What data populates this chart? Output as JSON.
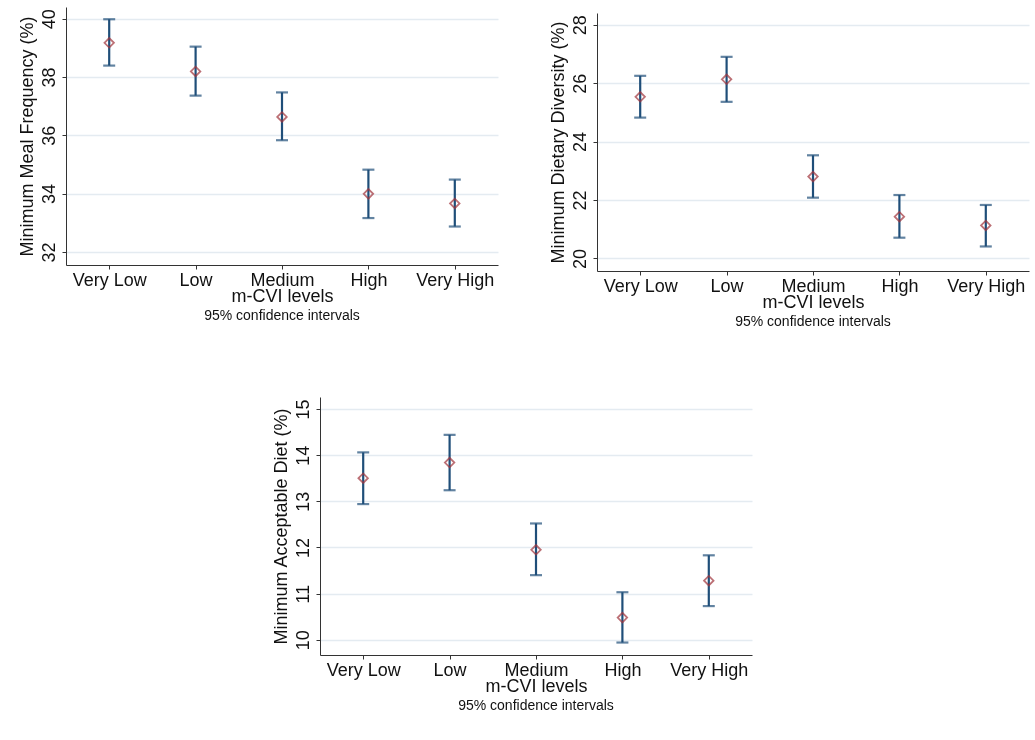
{
  "chart_data": [
    {
      "type": "scatter",
      "categories": [
        "Very Low",
        "Low",
        "Medium",
        "High",
        "Very High"
      ],
      "xlabel": "m-CVI levels",
      "ylabel": "Minimum Meal Frequency (%)",
      "annotations": [
        "95% confidence intervals"
      ],
      "ylim": [
        31.55,
        40.4
      ],
      "yticks": [
        32,
        34,
        36,
        38,
        40
      ],
      "grid": "y",
      "marker": "diamond",
      "series": [
        {
          "color": "#a0343c",
          "values": [
            39.17,
            38.19,
            36.63,
            33.99,
            33.66
          ],
          "errors": [
            [
              38.39,
              39.98
            ],
            [
              37.36,
              39.04
            ],
            [
              35.83,
              37.47
            ],
            [
              33.16,
              34.82
            ],
            [
              32.87,
              34.48
            ]
          ]
        }
      ]
    },
    {
      "type": "scatter",
      "categories": [
        "Very Low",
        "Low",
        "Medium",
        "High",
        "Very High"
      ],
      "xlabel": "m-CVI levels",
      "ylabel": "Minimum Dietary Diversity (%)",
      "annotations": [
        "95% confidence intervals"
      ],
      "ylim": [
        19.57,
        28.4
      ],
      "yticks": [
        20,
        22,
        24,
        26,
        28
      ],
      "grid": "y",
      "marker": "diamond",
      "series": [
        {
          "color": "#a0343c",
          "values": [
            25.53,
            26.13,
            22.8,
            21.43,
            21.13
          ],
          "errors": [
            [
              24.82,
              26.25
            ],
            [
              25.36,
              26.9
            ],
            [
              22.08,
              23.53
            ],
            [
              20.71,
              22.17
            ],
            [
              20.41,
              21.83
            ]
          ]
        }
      ]
    },
    {
      "type": "scatter",
      "categories": [
        "Very Low",
        "Low",
        "Medium",
        "High",
        "Very High"
      ],
      "xlabel": "m-CVI levels",
      "ylabel": "Minimum Acceptable Diet (%)",
      "annotations": [
        "95% confidence intervals"
      ],
      "ylim": [
        9.67,
        15.26
      ],
      "yticks": [
        10,
        11,
        12,
        13,
        14,
        15
      ],
      "grid": "y",
      "marker": "diamond",
      "series": [
        {
          "color": "#a0343c",
          "values": [
            13.5,
            13.84,
            11.95,
            10.48,
            11.28
          ],
          "errors": [
            [
              12.94,
              14.06
            ],
            [
              13.24,
              14.44
            ],
            [
              11.4,
              12.52
            ],
            [
              9.94,
              11.03
            ],
            [
              10.73,
              11.83
            ]
          ]
        }
      ]
    }
  ]
}
